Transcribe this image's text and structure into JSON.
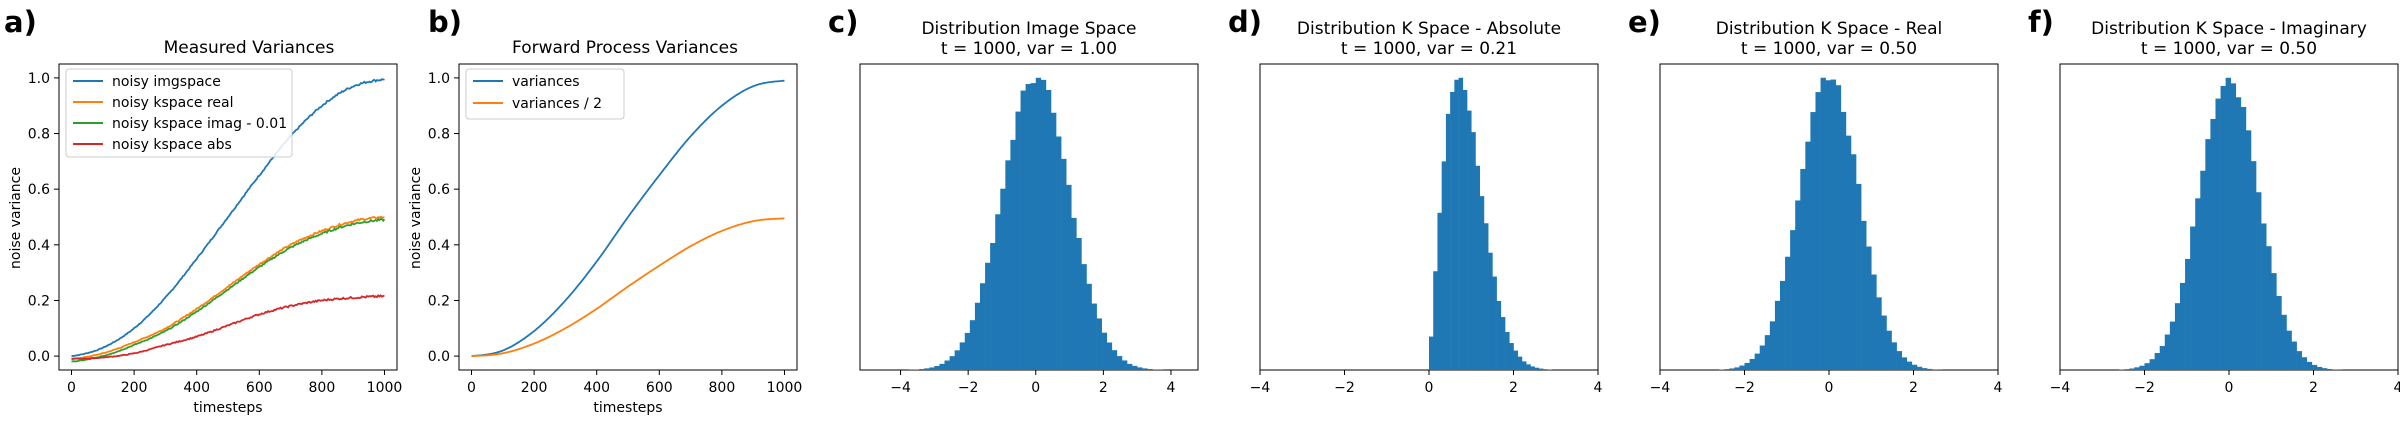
{
  "chart_data": [
    {
      "panel": "a)",
      "type": "line",
      "title": "Measured Variances",
      "xlabel": "timesteps",
      "ylabel": "noise variance",
      "xlim": [
        -40,
        1040
      ],
      "ylim": [
        -0.05,
        1.05
      ],
      "xticks": [
        0,
        200,
        400,
        600,
        800,
        1000
      ],
      "yticks": [
        0.0,
        0.2,
        0.4,
        0.6,
        0.8,
        1.0
      ],
      "xticklabels": [
        "0",
        "200",
        "400",
        "600",
        "800",
        "1000"
      ],
      "yticklabels": [
        "0.0",
        "0.2",
        "0.4",
        "0.6",
        "0.8",
        "1.0"
      ],
      "legend": "top-left",
      "x": [
        0,
        100,
        200,
        300,
        400,
        500,
        600,
        700,
        800,
        900,
        1000
      ],
      "series": [
        {
          "name": "noisy imgspace",
          "color": "#1f77b4",
          "noisy": true,
          "values": [
            0.0,
            0.03,
            0.1,
            0.21,
            0.35,
            0.5,
            0.65,
            0.79,
            0.9,
            0.97,
            0.995
          ]
        },
        {
          "name": "noisy kspace real",
          "color": "#ff7f0e",
          "noisy": true,
          "values": [
            -0.01,
            0.01,
            0.05,
            0.1,
            0.17,
            0.25,
            0.33,
            0.4,
            0.45,
            0.485,
            0.5
          ]
        },
        {
          "name": "noisy kspace imag - 0.01",
          "color": "#2ca02c",
          "noisy": true,
          "values": [
            -0.02,
            0.0,
            0.04,
            0.09,
            0.16,
            0.24,
            0.32,
            0.39,
            0.44,
            0.475,
            0.49
          ]
        },
        {
          "name": "noisy kspace abs",
          "color": "#d62728",
          "noisy": true,
          "values": [
            -0.01,
            -0.005,
            0.01,
            0.04,
            0.07,
            0.11,
            0.15,
            0.18,
            0.2,
            0.21,
            0.215
          ]
        }
      ]
    },
    {
      "panel": "b)",
      "type": "line",
      "title": "Forward Process Variances",
      "xlabel": "timesteps",
      "ylabel": "noise variance",
      "xlim": [
        -40,
        1040
      ],
      "ylim": [
        -0.05,
        1.05
      ],
      "xticks": [
        0,
        200,
        400,
        600,
        800,
        1000
      ],
      "yticks": [
        0.0,
        0.2,
        0.4,
        0.6,
        0.8,
        1.0
      ],
      "xticklabels": [
        "0",
        "200",
        "400",
        "600",
        "800",
        "1000"
      ],
      "yticklabels": [
        "0.0",
        "0.2",
        "0.4",
        "0.6",
        "0.8",
        "1.0"
      ],
      "legend": "top-left",
      "x": [
        0,
        100,
        200,
        300,
        400,
        500,
        600,
        700,
        800,
        900,
        1000
      ],
      "series": [
        {
          "name": "variances",
          "color": "#1f77b4",
          "noisy": false,
          "values": [
            0.0,
            0.02,
            0.09,
            0.2,
            0.34,
            0.5,
            0.65,
            0.79,
            0.9,
            0.97,
            0.99
          ]
        },
        {
          "name": "variances / 2",
          "color": "#ff7f0e",
          "noisy": false,
          "values": [
            0.0,
            0.01,
            0.045,
            0.1,
            0.17,
            0.25,
            0.325,
            0.395,
            0.45,
            0.485,
            0.495
          ]
        }
      ]
    },
    {
      "panel": "c)",
      "type": "histogram",
      "title": "Distribution Image Space",
      "subtitle": "t = 1000, var = 1.00",
      "color": "#1f77b4",
      "xlim": [
        -5.2,
        4.8
      ],
      "xticks": [
        -4,
        -2,
        0,
        2,
        4
      ],
      "xticklabels": [
        "−4",
        "−2",
        "0",
        "2",
        "4"
      ],
      "bin_width": 0.15,
      "mean": 0.0,
      "std": 1.0,
      "range": [
        -4.5,
        4.5
      ]
    },
    {
      "panel": "d)",
      "type": "histogram",
      "title": "Distribution K Space - Absolute",
      "subtitle": "t = 1000, var = 0.21",
      "color": "#1f77b4",
      "xlim": [
        -4,
        4
      ],
      "xticks": [
        -4,
        -2,
        0,
        2,
        4
      ],
      "xticklabels": [
        "−4",
        "−2",
        "0",
        "2",
        "4"
      ],
      "bin_width": 0.1,
      "distribution": "rayleigh",
      "scale": 0.7,
      "range": [
        0,
        3.2
      ]
    },
    {
      "panel": "e)",
      "type": "histogram",
      "title": "Distribution K Space - Real",
      "subtitle": "t = 1000, var = 0.50",
      "color": "#1f77b4",
      "xlim": [
        -4,
        4
      ],
      "xticks": [
        -4,
        -2,
        0,
        2,
        4
      ],
      "xticklabels": [
        "−4",
        "−2",
        "0",
        "2",
        "4"
      ],
      "bin_width": 0.12,
      "mean": 0.0,
      "std": 0.71,
      "range": [
        -3.2,
        3.2
      ]
    },
    {
      "panel": "f)",
      "type": "histogram",
      "title": "Distribution K Space - Imaginary",
      "subtitle": "t = 1000, var = 0.50",
      "color": "#1f77b4",
      "xlim": [
        -4,
        4
      ],
      "xticks": [
        -4,
        -2,
        0,
        2,
        4
      ],
      "xticklabels": [
        "−4",
        "−2",
        "0",
        "2",
        "4"
      ],
      "bin_width": 0.12,
      "mean": 0.0,
      "std": 0.71,
      "range": [
        -3.2,
        3.2
      ]
    }
  ]
}
